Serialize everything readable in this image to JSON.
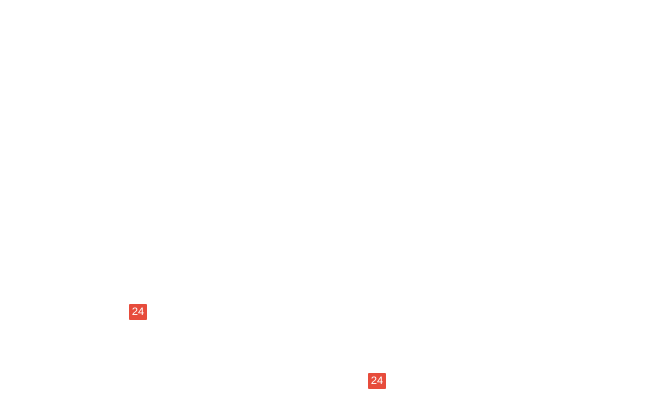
{
  "page": {
    "background_color": "#ffffff"
  },
  "badges": [
    {
      "label": "24",
      "background_color": "#e74c3c",
      "text_color": "#ffffff"
    },
    {
      "label": "24",
      "background_color": "#e74c3c",
      "text_color": "#ffffff"
    }
  ]
}
